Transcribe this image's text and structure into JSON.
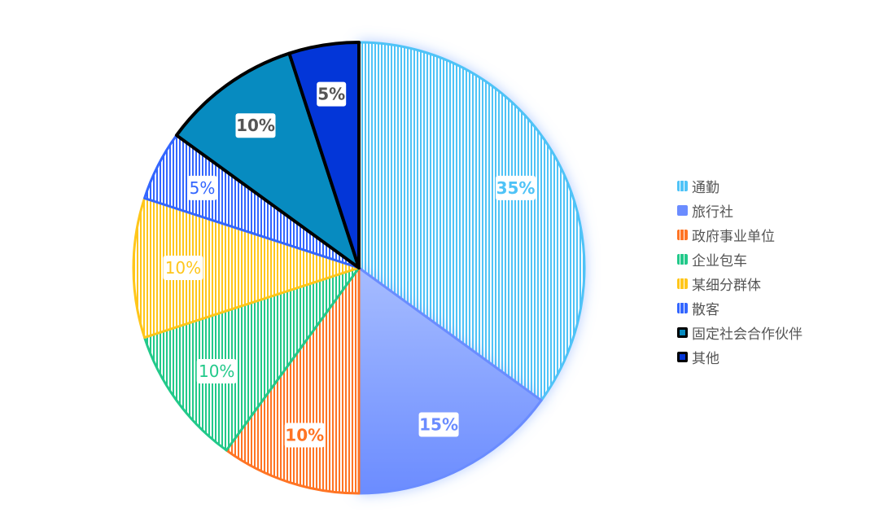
{
  "chart_data": {
    "type": "pie",
    "title": "",
    "legend_position": "right",
    "slices": [
      {
        "label": "通勤",
        "value": 35,
        "display": "35%",
        "color": "#4fc3f7",
        "stroke": "#4fc3f7",
        "style": "striped",
        "bold": true
      },
      {
        "label": "旅行社",
        "value": 15,
        "display": "15%",
        "color": "#6b8cff",
        "stroke": "#6b8cff",
        "style": "gradient",
        "bold": true
      },
      {
        "label": "政府事业单位",
        "value": 10,
        "display": "10%",
        "color": "#ff7424",
        "stroke": "#ff7424",
        "style": "striped",
        "bold": true
      },
      {
        "label": "企业包车",
        "value": 10,
        "display": "10%",
        "color": "#22c98a",
        "stroke": "#22c98a",
        "style": "striped",
        "bold": false
      },
      {
        "label": "某细分群体",
        "value": 10,
        "display": "10%",
        "color": "#ffc61a",
        "stroke": "#ffc61a",
        "style": "striped",
        "bold": false
      },
      {
        "label": "散客",
        "value": 5,
        "display": "5%",
        "color": "#3366ff",
        "stroke": "#3366ff",
        "style": "striped",
        "bold": false
      },
      {
        "label": "固定社会合作伙伴",
        "value": 10,
        "display": "10%",
        "color": "#078bc0",
        "stroke": "#000000",
        "style": "solid",
        "bold": true
      },
      {
        "label": "其他",
        "value": 5,
        "display": "5%",
        "color": "#0336d8",
        "stroke": "#000000",
        "style": "solid",
        "bold": true
      }
    ]
  }
}
